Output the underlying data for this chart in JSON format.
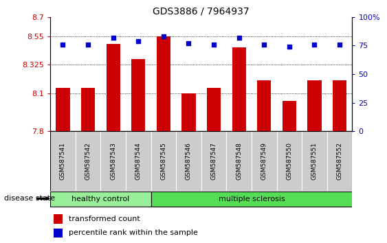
{
  "title": "GDS3886 / 7964937",
  "samples": [
    "GSM587541",
    "GSM587542",
    "GSM587543",
    "GSM587544",
    "GSM587545",
    "GSM587546",
    "GSM587547",
    "GSM587548",
    "GSM587549",
    "GSM587550",
    "GSM587551",
    "GSM587552"
  ],
  "bar_values": [
    8.14,
    8.14,
    8.49,
    8.37,
    8.55,
    8.1,
    8.14,
    8.46,
    8.2,
    8.04,
    8.2,
    8.2
  ],
  "dot_values": [
    76,
    76,
    82,
    79,
    83,
    77,
    76,
    82,
    76,
    74,
    76,
    76
  ],
  "ymin": 7.8,
  "ymax": 8.7,
  "yticks": [
    7.8,
    8.1,
    8.325,
    8.55,
    8.7
  ],
  "ytick_labels": [
    "7.8",
    "8.1",
    "8.325",
    "8.55",
    "8.7"
  ],
  "y2min": 0,
  "y2max": 100,
  "y2ticks": [
    0,
    25,
    50,
    75,
    100
  ],
  "y2tick_labels": [
    "0",
    "25",
    "50",
    "75",
    "100%"
  ],
  "bar_color": "#cc0000",
  "dot_color": "#0000cc",
  "groups": [
    {
      "label": "healthy control",
      "start": 0,
      "end": 3,
      "color": "#99ee99"
    },
    {
      "label": "multiple sclerosis",
      "start": 4,
      "end": 11,
      "color": "#55dd55"
    }
  ],
  "disease_state_label": "disease state",
  "legend_bar_label": "transformed count",
  "legend_dot_label": "percentile rank within the sample",
  "grid_color": "#000000",
  "axis_label_color_left": "#cc0000",
  "axis_label_color_right": "#0000cc",
  "sample_box_color": "#cccccc",
  "group_border_color": "#000000"
}
